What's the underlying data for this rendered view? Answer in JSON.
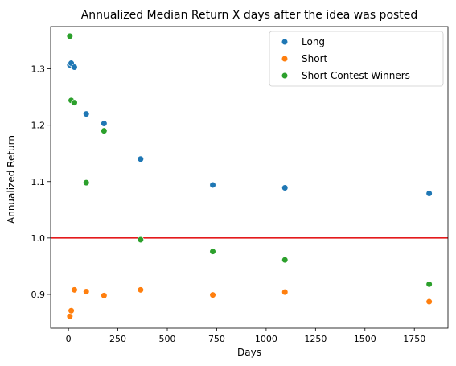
{
  "chart_data": {
    "type": "scatter",
    "title": "Annualized Median Return X days after the idea was posted",
    "xlabel": "Days",
    "ylabel": "Annualized Return",
    "xlim": [
      -90,
      1920
    ],
    "ylim": [
      0.84,
      1.375
    ],
    "xticks": [
      0,
      250,
      500,
      750,
      1000,
      1250,
      1500,
      1750
    ],
    "xtick_labels": [
      "0",
      "250",
      "500",
      "750",
      "1000",
      "1250",
      "1500",
      "1750"
    ],
    "yticks": [
      0.9,
      1.0,
      1.1,
      1.2,
      1.3
    ],
    "ytick_labels": [
      "0.9",
      "1.0",
      "1.1",
      "1.2",
      "1.3"
    ],
    "grid": false,
    "legend_position": "top-right",
    "reference_line": {
      "y": 1.0,
      "color": "#e41a1c"
    },
    "series": [
      {
        "name": "Long",
        "color": "#1f77b4",
        "points": [
          {
            "x": 7,
            "y": 1.307
          },
          {
            "x": 14,
            "y": 1.31
          },
          {
            "x": 30,
            "y": 1.303
          },
          {
            "x": 90,
            "y": 1.22
          },
          {
            "x": 180,
            "y": 1.203
          },
          {
            "x": 365,
            "y": 1.14
          },
          {
            "x": 730,
            "y": 1.094
          },
          {
            "x": 1095,
            "y": 1.089
          },
          {
            "x": 1825,
            "y": 1.079
          }
        ]
      },
      {
        "name": "Short",
        "color": "#ff7f0e",
        "points": [
          {
            "x": 7,
            "y": 0.861
          },
          {
            "x": 14,
            "y": 0.871
          },
          {
            "x": 30,
            "y": 0.908
          },
          {
            "x": 90,
            "y": 0.905
          },
          {
            "x": 180,
            "y": 0.898
          },
          {
            "x": 365,
            "y": 0.908
          },
          {
            "x": 730,
            "y": 0.899
          },
          {
            "x": 1095,
            "y": 0.904
          },
          {
            "x": 1825,
            "y": 0.887
          }
        ]
      },
      {
        "name": "Short Contest Winners",
        "color": "#2ca02c",
        "points": [
          {
            "x": 7,
            "y": 1.358
          },
          {
            "x": 14,
            "y": 1.244
          },
          {
            "x": 30,
            "y": 1.24
          },
          {
            "x": 90,
            "y": 1.098
          },
          {
            "x": 180,
            "y": 1.19
          },
          {
            "x": 365,
            "y": 0.997
          },
          {
            "x": 730,
            "y": 0.976
          },
          {
            "x": 1095,
            "y": 0.961
          },
          {
            "x": 1825,
            "y": 0.918
          }
        ]
      }
    ]
  }
}
